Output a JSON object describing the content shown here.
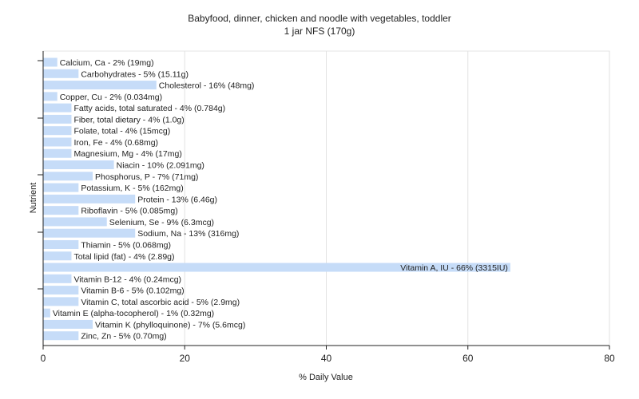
{
  "chart_data": {
    "type": "bar",
    "orientation": "horizontal",
    "title": "Babyfood, dinner, chicken and noodle with vegetables, toddler",
    "subtitle": "1 jar NFS (170g)",
    "xlabel": "% Daily Value",
    "ylabel": "Nutrient",
    "xlim": [
      0,
      80
    ],
    "xticks": [
      "0",
      "20",
      "40",
      "60",
      "80"
    ],
    "grid": true,
    "bar_color": "#c6dcf8",
    "categories": [
      "Calcium, Ca",
      "Carbohydrates",
      "Cholesterol",
      "Copper, Cu",
      "Fatty acids, total saturated",
      "Fiber, total dietary",
      "Folate, total",
      "Iron, Fe",
      "Magnesium, Mg",
      "Niacin",
      "Phosphorus, P",
      "Potassium, K",
      "Protein",
      "Riboflavin",
      "Selenium, Se",
      "Sodium, Na",
      "Thiamin",
      "Total lipid (fat)",
      "Vitamin A, IU",
      "Vitamin B-12",
      "Vitamin B-6",
      "Vitamin C, total ascorbic acid",
      "Vitamin E (alpha-tocopherol)",
      "Vitamin K (phylloquinone)",
      "Zinc, Zn"
    ],
    "values": [
      2,
      5,
      16,
      2,
      4,
      4,
      4,
      4,
      4,
      10,
      7,
      5,
      13,
      5,
      9,
      13,
      5,
      4,
      66,
      4,
      5,
      5,
      1,
      7,
      5
    ],
    "labels": [
      "Calcium, Ca - 2% (19mg)",
      "Carbohydrates - 5% (15.11g)",
      "Cholesterol - 16% (48mg)",
      "Copper, Cu - 2% (0.034mg)",
      "Fatty acids, total saturated - 4% (0.784g)",
      "Fiber, total dietary - 4% (1.0g)",
      "Folate, total - 4% (15mcg)",
      "Iron, Fe - 4% (0.68mg)",
      "Magnesium, Mg - 4% (17mg)",
      "Niacin - 10% (2.091mg)",
      "Phosphorus, P - 7% (71mg)",
      "Potassium, K - 5% (162mg)",
      "Protein - 13% (6.46g)",
      "Riboflavin - 5% (0.085mg)",
      "Selenium, Se - 9% (6.3mcg)",
      "Sodium, Na - 13% (316mg)",
      "Thiamin - 5% (0.068mg)",
      "Total lipid (fat) - 4% (2.89g)",
      "Vitamin A, IU - 66% (3315IU)",
      "Vitamin B-12 - 4% (0.24mcg)",
      "Vitamin B-6 - 5% (0.102mg)",
      "Vitamin C, total ascorbic acid - 5% (2.9mg)",
      "Vitamin E (alpha-tocopherol) - 1% (0.32mg)",
      "Vitamin K (phylloquinone) - 7% (5.6mcg)",
      "Zinc, Zn - 5% (0.70mg)"
    ]
  }
}
